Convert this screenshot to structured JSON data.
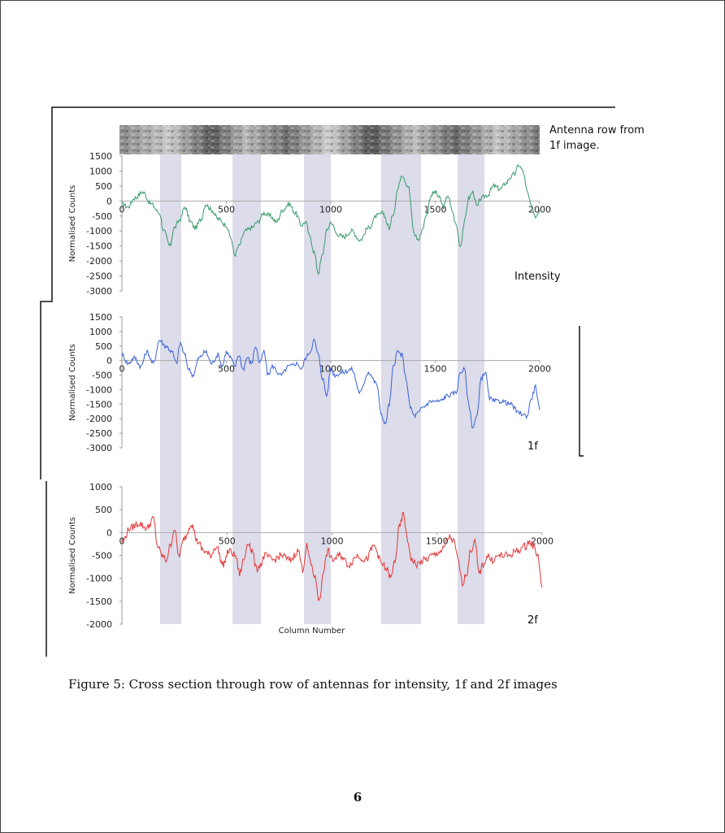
{
  "caption": "Figure 5: Cross section through row of antennas for intensity, 1f and 2f images",
  "page_number": "6",
  "strip_label_line1": "Antenna row from",
  "strip_label_line2": "1f image.",
  "chart_data": [
    {
      "type": "line",
      "name": "Intensity",
      "color": "#3a9a6a",
      "ylabel": "Normalised Counts",
      "xlabel": "",
      "xlim": [
        0,
        2000
      ],
      "ylim": [
        -3000,
        1500
      ],
      "yticks": [
        "1500",
        "1000",
        "500",
        "0",
        "-500",
        "-1000",
        "-1500",
        "-2000",
        "-2500",
        "-3000"
      ],
      "xticks": [
        "0",
        "500",
        "1000",
        "1500",
        "2000"
      ],
      "x": [
        0,
        30,
        60,
        100,
        140,
        180,
        200,
        230,
        250,
        280,
        300,
        330,
        350,
        380,
        400,
        430,
        460,
        500,
        520,
        540,
        560,
        590,
        620,
        650,
        680,
        710,
        740,
        770,
        800,
        830,
        860,
        880,
        900,
        920,
        940,
        960,
        980,
        1000,
        1030,
        1060,
        1100,
        1140,
        1180,
        1220,
        1250,
        1280,
        1300,
        1320,
        1340,
        1370,
        1400,
        1420,
        1440,
        1460,
        1480,
        1500,
        1520,
        1540,
        1560,
        1580,
        1600,
        1620,
        1640,
        1660,
        1680,
        1700,
        1720,
        1750,
        1780,
        1810,
        1840,
        1860,
        1880,
        1900,
        1920,
        1940,
        1960,
        1980,
        2000
      ],
      "values": [
        -100,
        -200,
        100,
        300,
        -100,
        -400,
        -1000,
        -1500,
        -900,
        -600,
        -200,
        -700,
        -900,
        -600,
        -100,
        -300,
        -600,
        -800,
        -1200,
        -1800,
        -1500,
        -1000,
        -900,
        -700,
        -400,
        -500,
        -700,
        -300,
        -100,
        -400,
        -800,
        -700,
        -1200,
        -1700,
        -2400,
        -1800,
        -1000,
        -700,
        -1100,
        -1200,
        -1000,
        -1300,
        -900,
        -500,
        -400,
        -900,
        -400,
        400,
        900,
        500,
        -1100,
        -1300,
        -900,
        -400,
        200,
        300,
        100,
        -200,
        200,
        -300,
        -800,
        -1500,
        -700,
        100,
        300,
        -200,
        100,
        200,
        500,
        400,
        600,
        800,
        900,
        1200,
        1000,
        300,
        -200,
        -500,
        -300
      ]
    },
    {
      "type": "line",
      "name": "1f",
      "color": "#3a63d8",
      "ylabel": "Normalised Counts",
      "xlabel": "",
      "xlim": [
        0,
        2000
      ],
      "ylim": [
        -3000,
        1500
      ],
      "yticks": [
        "1500",
        "1000",
        "500",
        "0",
        "-500",
        "-1000",
        "-1500",
        "-2000",
        "-2500",
        "-3000"
      ],
      "xticks": [
        "0",
        "500",
        "1000",
        "1500",
        "2000"
      ],
      "x": [
        0,
        30,
        60,
        90,
        120,
        150,
        180,
        210,
        240,
        260,
        280,
        300,
        320,
        340,
        370,
        400,
        430,
        460,
        480,
        500,
        520,
        540,
        560,
        580,
        600,
        620,
        640,
        660,
        680,
        700,
        720,
        760,
        800,
        840,
        860,
        880,
        900,
        920,
        940,
        960,
        980,
        1000,
        1020,
        1060,
        1100,
        1140,
        1180,
        1220,
        1240,
        1260,
        1280,
        1300,
        1320,
        1340,
        1360,
        1380,
        1400,
        1420,
        1440,
        1480,
        1520,
        1560,
        1600,
        1620,
        1640,
        1660,
        1680,
        1700,
        1720,
        1740,
        1760,
        1780,
        1820,
        1860,
        1900,
        1940,
        1960,
        1980,
        2000
      ],
      "values": [
        200,
        -100,
        100,
        -200,
        300,
        -100,
        700,
        500,
        300,
        -100,
        600,
        200,
        -300,
        -500,
        100,
        300,
        -100,
        200,
        -200,
        300,
        100,
        -200,
        200,
        -300,
        100,
        -100,
        500,
        -100,
        300,
        -500,
        -200,
        -500,
        -200,
        -100,
        -300,
        100,
        300,
        700,
        200,
        -600,
        -1200,
        -300,
        -500,
        -400,
        -300,
        -1100,
        -400,
        -800,
        -1800,
        -2200,
        -1500,
        -200,
        300,
        200,
        -600,
        -1600,
        -1900,
        -1800,
        -1600,
        -1400,
        -1400,
        -1200,
        -1100,
        -400,
        -300,
        -1500,
        -2300,
        -1900,
        -600,
        -400,
        -1300,
        -1400,
        -1400,
        -1500,
        -1800,
        -1900,
        -1300,
        -900,
        -1700
      ]
    },
    {
      "type": "line",
      "name": "2f",
      "color": "#e23838",
      "ylabel": "Normalised Counts",
      "xlabel": "Column Number",
      "xlim": [
        0,
        2000
      ],
      "ylim": [
        -2000,
        1000
      ],
      "yticks": [
        "1000",
        "500",
        "0",
        "-500",
        "-1000",
        "-1500",
        "-2000"
      ],
      "xticks": [
        "0",
        "500",
        "1000",
        "1500",
        "2000"
      ],
      "x": [
        0,
        40,
        80,
        120,
        150,
        170,
        190,
        210,
        230,
        250,
        270,
        300,
        330,
        360,
        390,
        420,
        450,
        480,
        510,
        540,
        560,
        580,
        600,
        620,
        640,
        660,
        680,
        720,
        760,
        800,
        840,
        860,
        880,
        900,
        920,
        940,
        960,
        980,
        1000,
        1040,
        1080,
        1120,
        1160,
        1200,
        1240,
        1260,
        1280,
        1300,
        1320,
        1340,
        1360,
        1380,
        1400,
        1440,
        1480,
        1520,
        1560,
        1580,
        1600,
        1620,
        1640,
        1660,
        1680,
        1700,
        1720,
        1740,
        1760,
        1800,
        1840,
        1880,
        1920,
        1940,
        1960,
        1980,
        2000
      ],
      "values": [
        -200,
        100,
        200,
        100,
        300,
        -300,
        -500,
        -600,
        -300,
        100,
        -500,
        -100,
        200,
        -200,
        -400,
        -500,
        -300,
        -700,
        -400,
        -500,
        -900,
        -600,
        -200,
        -400,
        -800,
        -700,
        -500,
        -600,
        -500,
        -600,
        -400,
        -800,
        -300,
        -700,
        -1000,
        -1500,
        -800,
        -400,
        -600,
        -500,
        -700,
        -500,
        -600,
        -300,
        -700,
        -800,
        -1000,
        -600,
        100,
        400,
        -200,
        -600,
        -700,
        -600,
        -500,
        -400,
        -100,
        -200,
        -600,
        -1100,
        -900,
        -400,
        -200,
        -900,
        -700,
        -500,
        -600,
        -500,
        -500,
        -400,
        -300,
        -200,
        -300,
        -500,
        -1200
      ]
    }
  ]
}
